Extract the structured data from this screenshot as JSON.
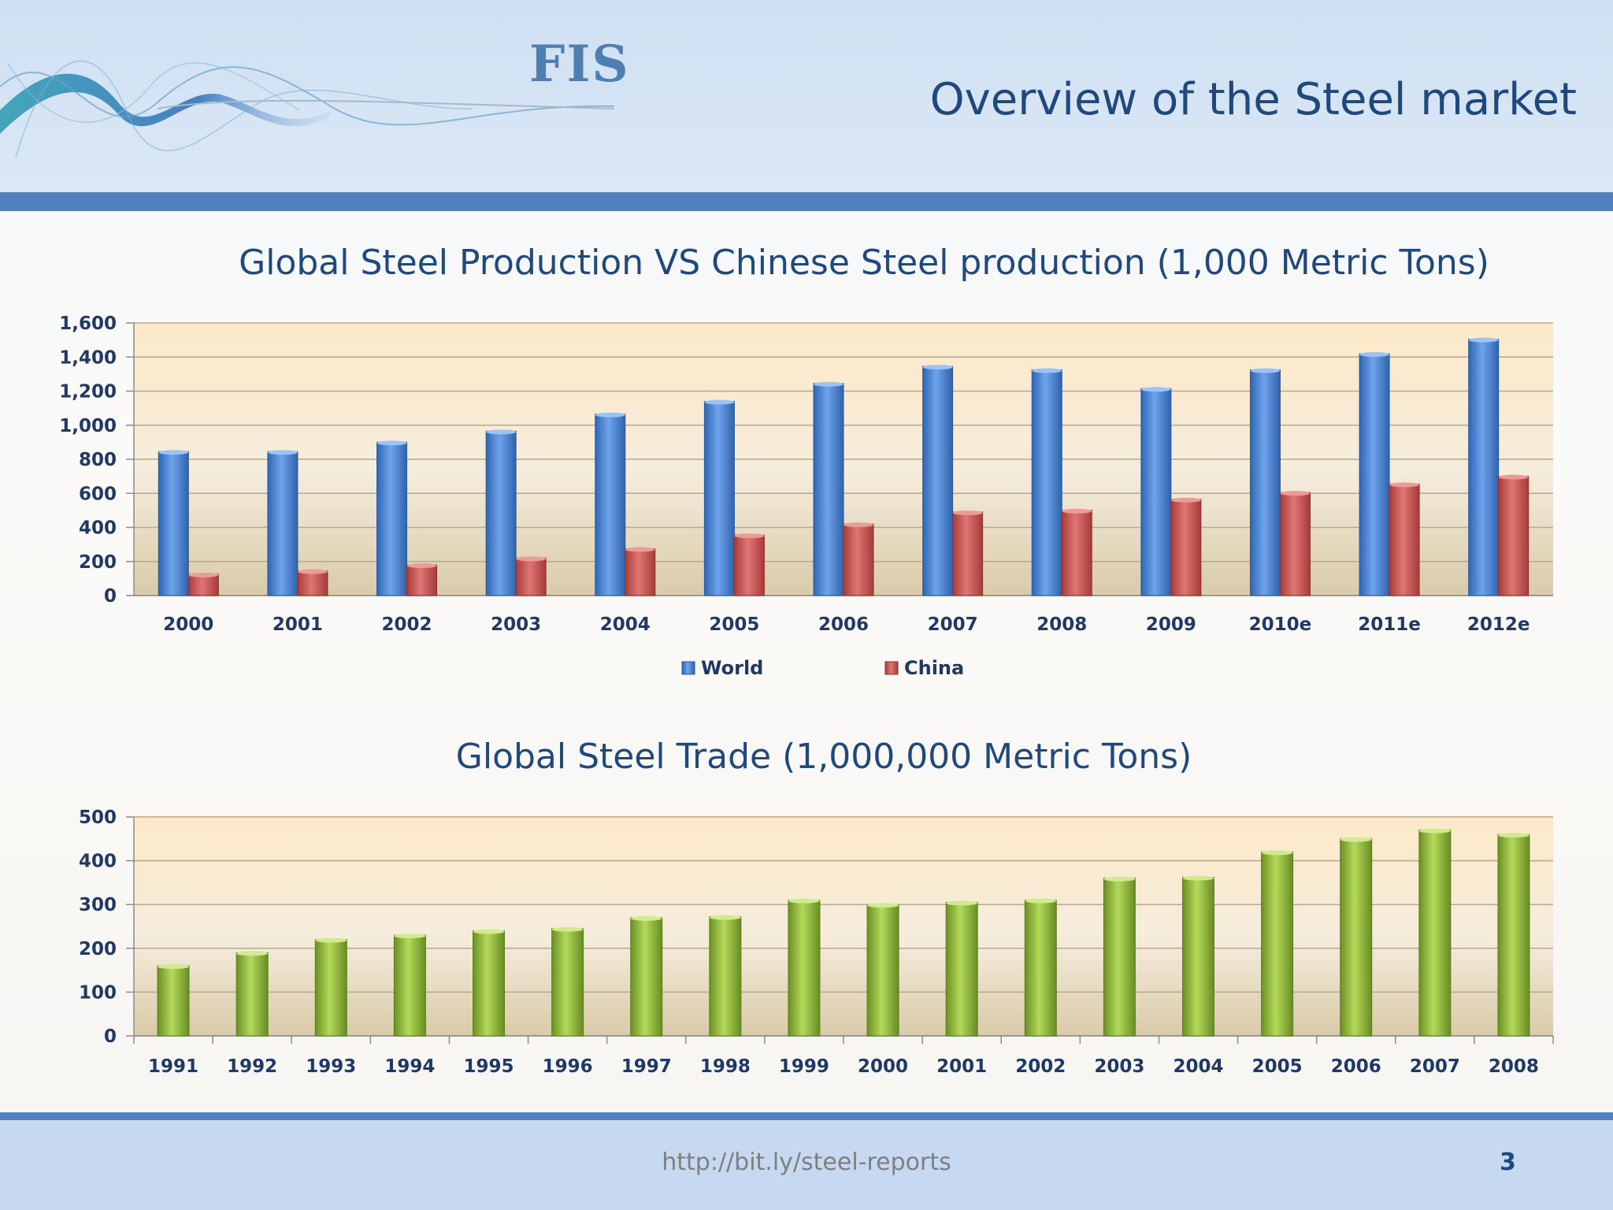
{
  "header": {
    "logo_text": "FIS",
    "title": "Overview of the Steel market"
  },
  "footer": {
    "url": "http://bit.ly/steel-reports",
    "page_number": "3"
  },
  "colors": {
    "world": "#4a86d8",
    "china": "#c0504d",
    "trade": "#8cb33a",
    "title": "#1f497d",
    "accent": "#4f81bd"
  },
  "chart_data": [
    {
      "type": "bar",
      "title": "Global Steel Production VS Chinese Steel production (1,000 Metric Tons)",
      "categories": [
        "2000",
        "2001",
        "2002",
        "2003",
        "2004",
        "2005",
        "2006",
        "2007",
        "2008",
        "2009",
        "2010e",
        "2011e",
        "2012e"
      ],
      "series": [
        {
          "name": "World",
          "values": [
            845,
            845,
            900,
            965,
            1065,
            1140,
            1245,
            1345,
            1325,
            1215,
            1325,
            1420,
            1505
          ]
        },
        {
          "name": "China",
          "values": [
            125,
            145,
            180,
            220,
            275,
            355,
            420,
            490,
            500,
            565,
            605,
            655,
            700
          ]
        }
      ],
      "ylim": [
        0,
        1600
      ],
      "yticks": [
        "0",
        "200",
        "400",
        "600",
        "800",
        "1,000",
        "1,200",
        "1,400",
        "1,600"
      ],
      "ytick_values": [
        0,
        200,
        400,
        600,
        800,
        1000,
        1200,
        1400,
        1600
      ],
      "grid": true,
      "legend": "bottom-center"
    },
    {
      "type": "bar",
      "title": "Global Steel Trade (1,000,000 Metric Tons)",
      "categories": [
        "1991",
        "1992",
        "1993",
        "1994",
        "1995",
        "1996",
        "1997",
        "1998",
        "1999",
        "2000",
        "2001",
        "2002",
        "2003",
        "2004",
        "2005",
        "2006",
        "2007",
        "2008"
      ],
      "values": [
        160,
        190,
        220,
        230,
        240,
        245,
        270,
        272,
        310,
        300,
        305,
        310,
        360,
        362,
        420,
        450,
        470,
        460
      ],
      "ylim": [
        0,
        500
      ],
      "yticks": [
        "0",
        "100",
        "200",
        "300",
        "400",
        "500"
      ],
      "ytick_values": [
        0,
        100,
        200,
        300,
        400,
        500
      ],
      "grid": true,
      "legend": "none"
    }
  ]
}
